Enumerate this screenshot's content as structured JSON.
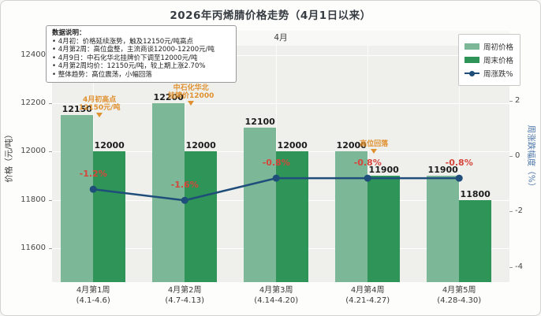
{
  "title": "2026年丙烯腈价格走势（4月1日以来）",
  "facet_label": "4月",
  "notes": {
    "header": "数据说明：",
    "items": [
      "• 4月初：价格延续涨势，触及12150元/吨高点",
      "• 4月第2周：高位盘整，主流商谈12000-12200元/吨",
      "• 4月9日：中石化华北挂牌价下调至12000元/吨",
      "• 4月第2周均价：12150元/吨，较上期上涨2.70%",
      "• 整体趋势：高位震荡，小幅回落"
    ]
  },
  "legend": [
    {
      "label": "周初价格",
      "type": "bar",
      "color": "#7cb897"
    },
    {
      "label": "周末价格",
      "type": "bar",
      "color": "#2e9458"
    },
    {
      "label": "周涨跌%",
      "type": "line",
      "color": "#1e4e79"
    }
  ],
  "colors": {
    "week_start_bar": "#7cb897",
    "week_end_bar": "#2e9458",
    "change_line": "#1e4e79",
    "change_label": "#d6453a",
    "annotation": "#e0912f",
    "plot_bg": "#efefec"
  },
  "chart_data": {
    "type": "bar+line",
    "title": "2026年丙烯腈价格走势（4月1日以来）",
    "categories": [
      "4月第1周",
      "4月第2周",
      "4月第3周",
      "4月第4周",
      "4月第5周"
    ],
    "category_sub": [
      "(4.1-4.6)",
      "(4.7-4.13)",
      "(4.14-4.20)",
      "(4.21-4.27)",
      "(4.28-4.30)"
    ],
    "series": [
      {
        "name": "周初价格",
        "type": "bar",
        "axis": "left",
        "values": [
          12150,
          12200,
          12100,
          12000,
          11900
        ]
      },
      {
        "name": "周末价格",
        "type": "bar",
        "axis": "left",
        "values": [
          12000,
          12000,
          12000,
          11900,
          11800
        ]
      },
      {
        "name": "周涨跌%",
        "type": "line",
        "axis": "right",
        "values": [
          -1.2,
          -1.6,
          -0.8,
          -0.8,
          -0.8
        ],
        "point_labels": [
          "-1.2%",
          "-1.6%",
          "-0.8%",
          "-0.8%",
          "-0.8%"
        ]
      }
    ],
    "left_axis": {
      "label": "价格（元/吨）",
      "ticks": [
        11600,
        11800,
        12000,
        12200,
        12400
      ],
      "range": [
        11460,
        12500
      ]
    },
    "right_axis": {
      "label": "周涨跌幅度（%）",
      "ticks": [
        -4,
        -2,
        0,
        2,
        4
      ],
      "range": [
        -4.55,
        4.52
      ]
    },
    "annotations": [
      {
        "group": 0,
        "lines": [
          "4月初高点",
          "12150元/吨"
        ]
      },
      {
        "group": 1,
        "lines": [
          "4月9日",
          "中石化华北",
          "挂牌价12000"
        ]
      },
      {
        "group": 3,
        "lines": [
          "高位回落"
        ]
      }
    ],
    "grid": true,
    "legend_position": "top-right"
  }
}
